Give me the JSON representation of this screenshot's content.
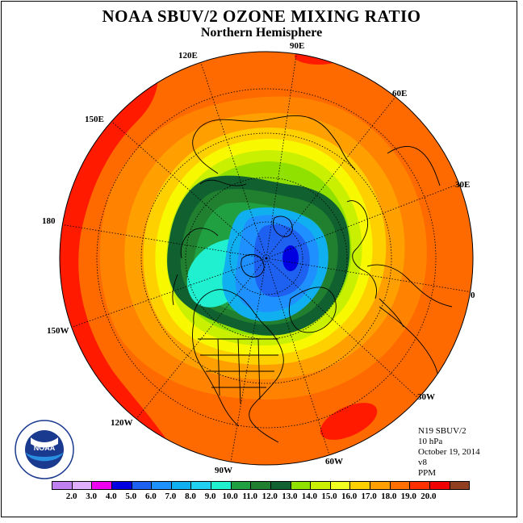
{
  "title": "NOAA SBUV/2 OZONE MIXING RATIO",
  "subtitle": "Northern Hemisphere",
  "longitude_labels": {
    "lon_90e": "90E",
    "lon_60e": "60E",
    "lon_30e": "30E",
    "lon_0": "0",
    "lon_30w": "30W",
    "lon_60w": "60W",
    "lon_90w": "90W",
    "lon_120w": "120W",
    "lon_150w": "150W",
    "lon_180": "180",
    "lon_150e": "150E",
    "lon_120e": "120E"
  },
  "info": {
    "instrument": "N19 SBUV/2",
    "level": "10 hPa",
    "date": "October 19, 2014",
    "version": "v8",
    "units": "PPM"
  },
  "legend": {
    "ticks": [
      "2.0",
      "3.0",
      "4.0",
      "5.0",
      "6.0",
      "7.0",
      "8.0",
      "9.0",
      "10.0",
      "11.0",
      "12.0",
      "13.0",
      "14.0",
      "15.0",
      "16.0",
      "17.0",
      "18.0",
      "19.0",
      "20.0"
    ],
    "colors": [
      "#c080f0",
      "#e0b0ff",
      "#f000f0",
      "#0000e0",
      "#1e60f0",
      "#1e90ff",
      "#10b0f0",
      "#20d0f0",
      "#20f0d0",
      "#20a040",
      "#208030",
      "#106030",
      "#90e000",
      "#c8f000",
      "#f0ff20",
      "#ffd000",
      "#ffa000",
      "#ff7000",
      "#ff3000",
      "#f00000",
      "#904020"
    ]
  },
  "logo": {
    "text": "NOAA",
    "ring_text": "NATIONAL OCEANIC AND ATMOSPHERIC ADMINISTRATION · U.S. DEPARTMENT OF COMMERCE"
  },
  "palette": {
    "red": "#ff1a00",
    "orange_red": "#ff6a00",
    "orange": "#ff9a00",
    "gold": "#ffc000",
    "yellow": "#f8f800",
    "yellow_green": "#c8f000",
    "green_light": "#90e000",
    "green_dark": "#106030",
    "green_mid": "#208030",
    "green": "#20a040",
    "cyan": "#20f0d0",
    "sky": "#10b0f0",
    "blue": "#1e90ff",
    "blue_mid": "#1e60f0",
    "navy": "#0000e0"
  }
}
